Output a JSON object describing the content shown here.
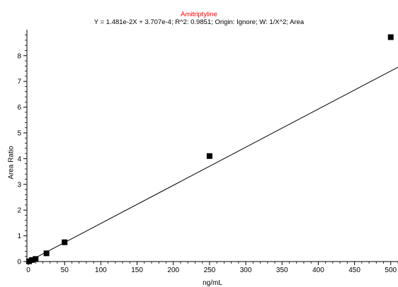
{
  "chart_data": {
    "type": "scatter",
    "title": "Amitriptyline",
    "subtitle": "Y = 1.481e-2X + 3.707e-4; R^2: 0.9851; Origin: Ignore; W: 1/X^2; Area",
    "xlabel": "ng/mL",
    "ylabel": "Area Ratio",
    "xlim": [
      -2,
      510
    ],
    "ylim": [
      0,
      8.9
    ],
    "x_ticks": [
      0,
      50,
      100,
      150,
      200,
      250,
      300,
      350,
      400,
      450,
      500
    ],
    "y_ticks": [
      0,
      1,
      2,
      3,
      4,
      5,
      6,
      7,
      8
    ],
    "grid": false,
    "points": {
      "x": [
        1,
        5,
        10,
        25,
        50,
        250,
        500
      ],
      "y": [
        0.01,
        0.06,
        0.1,
        0.32,
        0.75,
        4.1,
        8.72
      ]
    },
    "fit_line": {
      "slope": 0.01481,
      "intercept": 0.0003707
    },
    "colors": {
      "title": "#ff0000",
      "marker": "#000000",
      "line": "#000000"
    }
  }
}
